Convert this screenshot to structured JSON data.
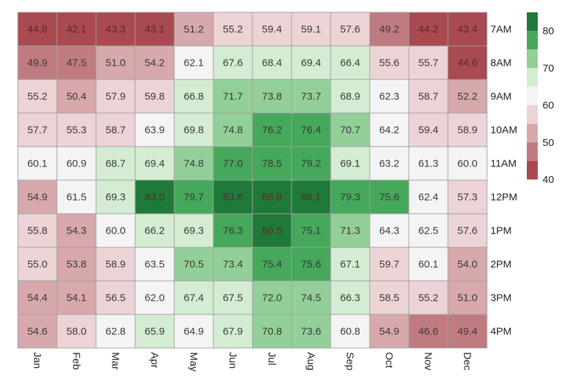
{
  "chart_data": {
    "type": "heatmap",
    "title": "",
    "xlabel": "",
    "ylabel": "",
    "x": [
      "Jan",
      "Feb",
      "Mar",
      "Apr",
      "May",
      "Jun",
      "Jul",
      "Aug",
      "Sep",
      "Oct",
      "Nov",
      "Dec"
    ],
    "y": [
      "7AM",
      "8AM",
      "9AM",
      "10AM",
      "11AM",
      "12PM",
      "1PM",
      "2PM",
      "3PM",
      "4PM"
    ],
    "values": [
      [
        44.9,
        42.1,
        43.3,
        43.1,
        51.2,
        55.2,
        59.4,
        59.1,
        57.6,
        49.2,
        44.2,
        43.4
      ],
      [
        49.9,
        47.5,
        51.0,
        54.2,
        62.1,
        67.6,
        68.4,
        69.4,
        66.4,
        55.6,
        55.7,
        44.6
      ],
      [
        55.2,
        50.4,
        57.9,
        59.8,
        66.8,
        71.7,
        73.8,
        73.7,
        68.9,
        62.3,
        58.7,
        52.2
      ],
      [
        57.7,
        55.3,
        58.7,
        63.9,
        69.8,
        74.8,
        76.2,
        76.4,
        70.7,
        64.2,
        59.4,
        58.9
      ],
      [
        60.1,
        60.9,
        68.7,
        69.4,
        74.8,
        77.0,
        78.5,
        79.2,
        69.1,
        63.2,
        61.3,
        60.0
      ],
      [
        54.9,
        61.5,
        69.3,
        83.0,
        79.7,
        83.6,
        86.8,
        86.1,
        79.3,
        75.6,
        62.4,
        57.3
      ],
      [
        55.8,
        54.3,
        60.0,
        66.2,
        69.3,
        76.3,
        80.5,
        75.1,
        71.3,
        64.3,
        62.5,
        57.6
      ],
      [
        55.0,
        53.8,
        58.9,
        63.5,
        70.5,
        73.4,
        75.4,
        75.6,
        67.1,
        59.7,
        60.1,
        54.0
      ],
      [
        54.4,
        54.1,
        56.5,
        62.0,
        67.4,
        67.5,
        72.0,
        74.5,
        66.3,
        58.5,
        55.2,
        51.0
      ],
      [
        54.6,
        58.0,
        62.8,
        65.9,
        64.9,
        67.9,
        70.8,
        73.6,
        60.8,
        54.9,
        46.6,
        49.4
      ]
    ],
    "colorbar": {
      "ticks": [
        80,
        70,
        60,
        50,
        40
      ],
      "range": [
        40,
        85
      ],
      "bins": [
        {
          "min": 80,
          "max": 85,
          "color": "#1f7a3a"
        },
        {
          "min": 75,
          "max": 80,
          "color": "#45a85a"
        },
        {
          "min": 70,
          "max": 75,
          "color": "#93cf98"
        },
        {
          "min": 65,
          "max": 70,
          "color": "#d4ecd2"
        },
        {
          "min": 60,
          "max": 65,
          "color": "#f4f4f4"
        },
        {
          "min": 55,
          "max": 60,
          "color": "#ecd3d5"
        },
        {
          "min": 50,
          "max": 55,
          "color": "#d7a8ac"
        },
        {
          "min": 45,
          "max": 50,
          "color": "#c07b80"
        },
        {
          "min": 40,
          "max": 45,
          "color": "#a94950"
        }
      ]
    },
    "grid": true,
    "legend": "colorbar-right"
  }
}
